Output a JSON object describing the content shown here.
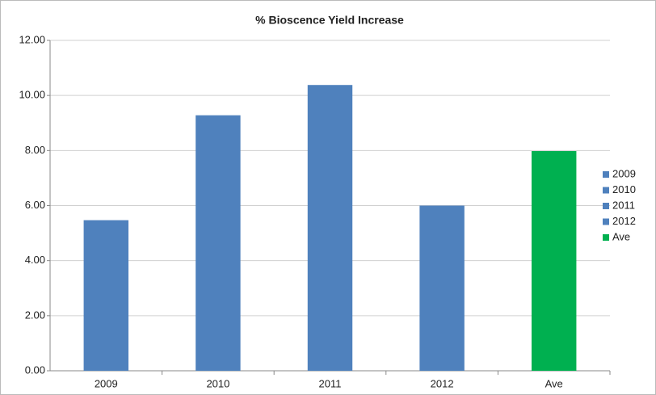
{
  "chart_data": {
    "type": "bar",
    "title": "% Bioscence Yield Increase",
    "categories": [
      "2009",
      "2010",
      "2011",
      "2012",
      "Ave"
    ],
    "values": [
      5.47,
      9.28,
      10.38,
      6.0,
      7.98
    ],
    "colors": [
      "#4f81bd",
      "#4f81bd",
      "#4f81bd",
      "#4f81bd",
      "#00b050"
    ],
    "ylim": [
      0,
      12
    ],
    "yticks": [
      {
        "value": 0,
        "label": "0.00"
      },
      {
        "value": 2,
        "label": "2.00"
      },
      {
        "value": 4,
        "label": "4.00"
      },
      {
        "value": 6,
        "label": "6.00"
      },
      {
        "value": 8,
        "label": "8.00"
      },
      {
        "value": 10,
        "label": "10.00"
      },
      {
        "value": 12,
        "label": "12.00"
      }
    ],
    "grid": true,
    "legend": "right"
  }
}
